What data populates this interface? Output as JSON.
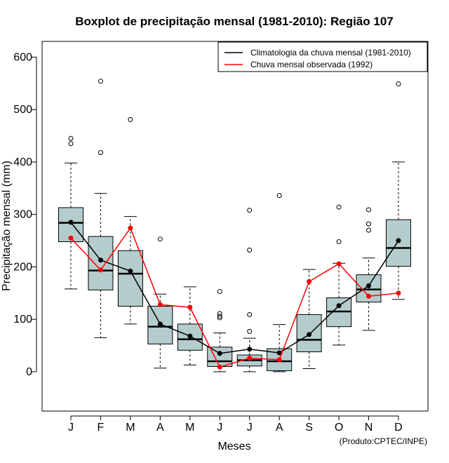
{
  "chart_data": {
    "type": "boxplot",
    "title": "Boxplot de precipitação mensal (1981-2010): Região 107",
    "xlabel": "Meses",
    "ylabel": "Precipitação mensal (mm)",
    "ylim": [
      -75,
      630
    ],
    "yticks": [
      0,
      100,
      200,
      300,
      400,
      500,
      600
    ],
    "categories": [
      "J",
      "F",
      "M",
      "A",
      "M",
      "J",
      "J",
      "A",
      "S",
      "O",
      "N",
      "D"
    ],
    "boxes": [
      {
        "whisker_low": 158,
        "q1": 248,
        "median": 284,
        "q3": 313,
        "whisker_high": 398,
        "outliers": [
          435,
          445
        ]
      },
      {
        "whisker_low": 65,
        "q1": 156,
        "median": 193,
        "q3": 258,
        "whisker_high": 340,
        "outliers": [
          418,
          554
        ]
      },
      {
        "whisker_low": 91,
        "q1": 125,
        "median": 187,
        "q3": 231,
        "whisker_high": 296,
        "outliers": [
          481
        ]
      },
      {
        "whisker_low": 7,
        "q1": 53,
        "median": 86,
        "q3": 125,
        "whisker_high": 148,
        "outliers": [
          253
        ]
      },
      {
        "whisker_low": 13,
        "q1": 41,
        "median": 62,
        "q3": 91,
        "whisker_high": 162,
        "outliers": []
      },
      {
        "whisker_low": 0,
        "q1": 10,
        "median": 20,
        "q3": 47,
        "whisker_high": 74,
        "outliers": [
          103,
          106,
          111,
          153
        ]
      },
      {
        "whisker_low": 0,
        "q1": 11,
        "median": 22,
        "q3": 32,
        "whisker_high": 64,
        "outliers": [
          77,
          109,
          232,
          308
        ]
      },
      {
        "whisker_low": 0,
        "q1": 2,
        "median": 20,
        "q3": 44,
        "whisker_high": 90,
        "outliers": [
          336
        ]
      },
      {
        "whisker_low": 6,
        "q1": 38,
        "median": 61,
        "q3": 109,
        "whisker_high": 195,
        "outliers": []
      },
      {
        "whisker_low": 51,
        "q1": 86,
        "median": 115,
        "q3": 141,
        "whisker_high": 207,
        "outliers": [
          248,
          314
        ]
      },
      {
        "whisker_low": 79,
        "q1": 133,
        "median": 157,
        "q3": 185,
        "whisker_high": 217,
        "outliers": [
          270,
          282,
          309
        ]
      },
      {
        "whisker_low": 138,
        "q1": 201,
        "median": 236,
        "q3": 290,
        "whisker_high": 400,
        "outliers": [
          549
        ]
      }
    ],
    "series": [
      {
        "name": "Climatologia da chuva mensal (1981-2010)",
        "color": "#000000",
        "values": [
          285,
          213,
          192,
          91,
          68,
          35,
          43,
          36,
          71,
          126,
          164,
          250
        ]
      },
      {
        "name": "Chuva mensal observada (1992)",
        "color": "#ff0000",
        "values": [
          255,
          194,
          274,
          128,
          123,
          9,
          26,
          23,
          172,
          206,
          144,
          150
        ]
      }
    ],
    "legend_position": "top-right",
    "box_fill": "#b4cccc",
    "credit": "(Produto:CPTEC/INPE)"
  }
}
